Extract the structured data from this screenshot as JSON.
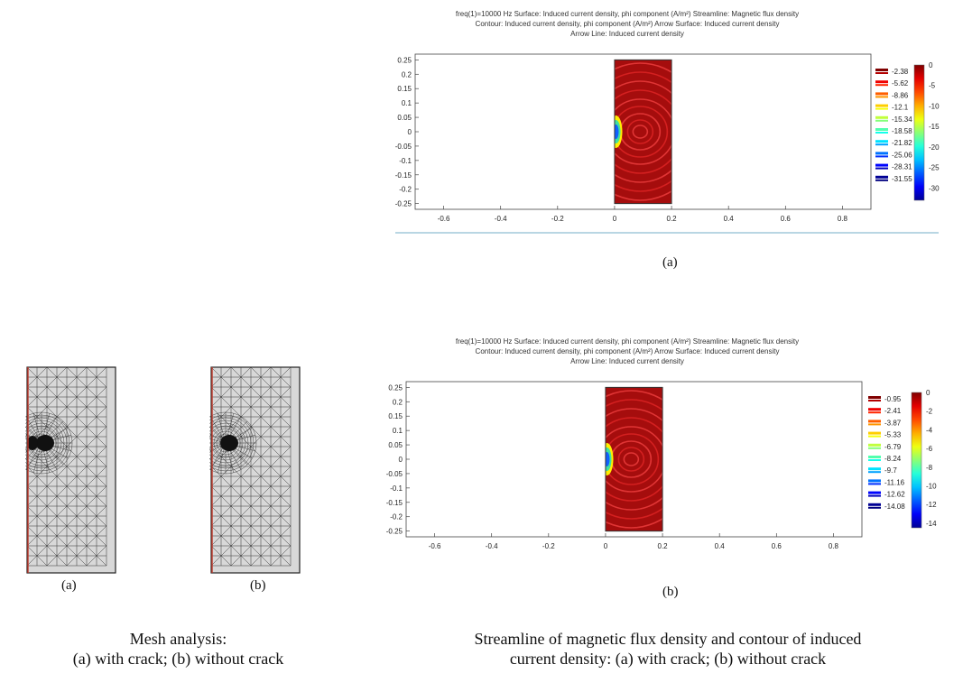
{
  "panels": [
    {
      "id": "a",
      "title_lines": [
        "freq(1)=10000 Hz   Surface: Induced current density, phi component (A/m²)  Streamline: Magnetic flux density",
        "Contour: Induced current density, phi component (A/m²)  Arrow Surface: Induced current density",
        "Arrow Line: Induced current density"
      ],
      "label": "(a)",
      "chart_data": {
        "type": "heatmap",
        "xlim": [
          -0.7,
          0.9
        ],
        "ylim": [
          -0.27,
          0.27
        ],
        "xticks": [
          "-0.6",
          "-0.4",
          "-0.2",
          "0",
          "0.2",
          "0.4",
          "0.6",
          "0.8"
        ],
        "yticks": [
          "0.25",
          "0.2",
          "0.15",
          "0.1",
          "0.05",
          "0",
          "-0.05",
          "-0.1",
          "-0.15",
          "-0.2",
          "-0.25"
        ],
        "domain_x": [
          0,
          0.2
        ],
        "domain_y": [
          -0.25,
          0.25
        ],
        "contour_legend": [
          "-2.38",
          "-5.62",
          "-8.86",
          "-12.1",
          "-15.34",
          "-18.58",
          "-21.82",
          "-25.06",
          "-28.31",
          "-31.55"
        ],
        "colorbar_ticks": [
          "0",
          "-5",
          "-10",
          "-15",
          "-20",
          "-25",
          "-30"
        ],
        "colorbar_range": [
          -33,
          0
        ]
      }
    },
    {
      "id": "b",
      "title_lines": [
        "freq(1)=10000 Hz   Surface: Induced current density, phi component (A/m²)  Streamline: Magnetic flux density",
        "Contour: Induced current density, phi component (A/m²)  Arrow Surface: Induced current density",
        "Arrow Line: Induced current density"
      ],
      "label": "(b)",
      "chart_data": {
        "type": "heatmap",
        "xlim": [
          -0.7,
          0.9
        ],
        "ylim": [
          -0.27,
          0.27
        ],
        "xticks": [
          "-0.6",
          "-0.4",
          "-0.2",
          "0",
          "0.2",
          "0.4",
          "0.6",
          "0.8"
        ],
        "yticks": [
          "0.25",
          "0.2",
          "0.15",
          "0.1",
          "0.05",
          "0",
          "-0.05",
          "-0.1",
          "-0.15",
          "-0.2",
          "-0.25"
        ],
        "domain_x": [
          0,
          0.2
        ],
        "domain_y": [
          -0.25,
          0.25
        ],
        "contour_legend": [
          "-0.95",
          "-2.41",
          "-3.87",
          "-5.33",
          "-6.79",
          "-8.24",
          "-9.7",
          "-11.16",
          "-12.62",
          "-14.08"
        ],
        "colorbar_ticks": [
          "0",
          "-2",
          "-4",
          "-6",
          "-8",
          "-10",
          "-12",
          "-14"
        ],
        "colorbar_range": [
          -14.5,
          0
        ]
      }
    }
  ],
  "mesh": {
    "a_label": "(a)",
    "b_label": "(b)"
  },
  "captions": {
    "left": [
      "Mesh analysis:",
      "(a) with crack; (b) without crack"
    ],
    "right": [
      "Streamline of magnetic flux density and contour of induced",
      "current density: (a) with crack; (b) without crack"
    ]
  }
}
